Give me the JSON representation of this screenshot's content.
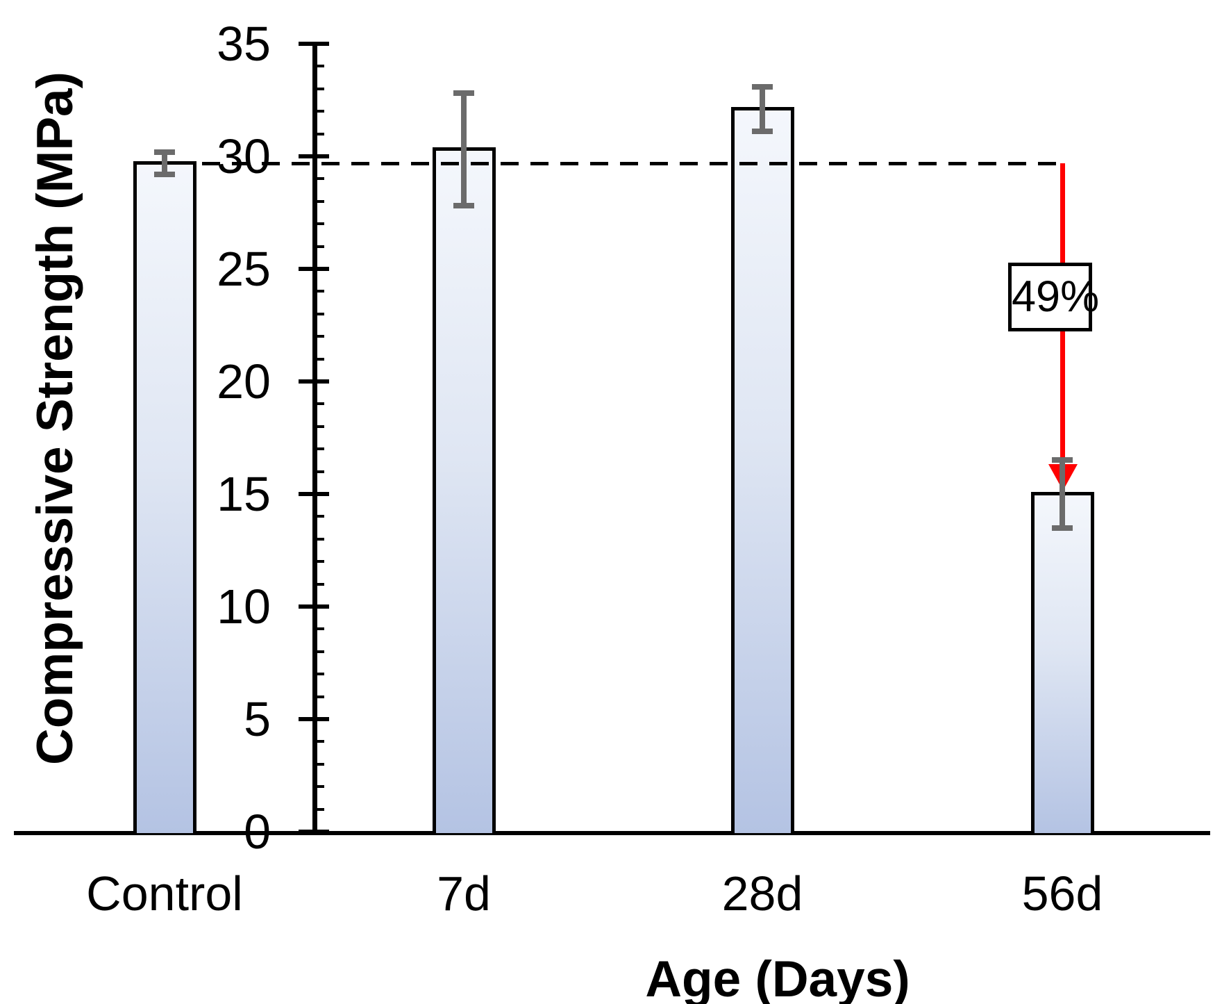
{
  "figure": {
    "background": "#ffffff"
  },
  "chart_data": {
    "type": "bar",
    "categories": [
      "Control",
      "7d",
      "28d",
      "56d"
    ],
    "values": [
      29.7,
      30.3,
      32.1,
      15.0
    ],
    "errors": [
      0.5,
      2.5,
      1.0,
      1.5
    ],
    "xlabel": "Age (Days)",
    "ylabel": "Compressive Strength (MPa)",
    "ylim": [
      0,
      35
    ],
    "yticks": [
      0,
      5,
      10,
      15,
      20,
      25,
      30,
      35
    ],
    "minor_tick_step": 1,
    "grid": false,
    "legend": false,
    "reference_line": {
      "value": 29.7,
      "style": "dashed",
      "color": "#000000"
    },
    "annotation": {
      "label": "49%",
      "arrow_color": "#ff0000",
      "target_category": "56d",
      "from_value": 29.7,
      "to_value": 15.0
    },
    "bar_style": {
      "fill_top": "#f4f7fc",
      "fill_bottom": "#b4c3e3",
      "border": "#000000"
    },
    "error_bar_color": "#6b6b6b"
  }
}
